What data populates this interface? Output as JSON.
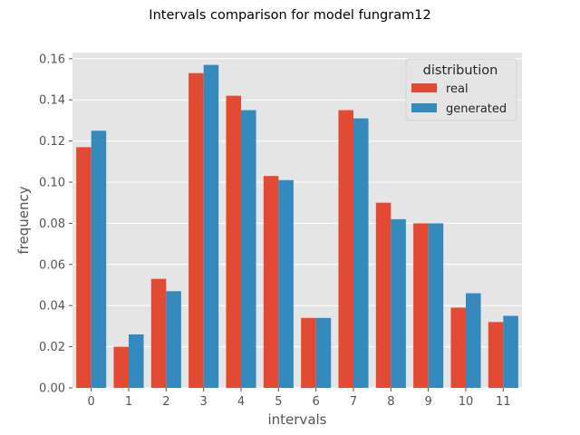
{
  "chart_data": {
    "type": "bar",
    "title": "Intervals comparison for model fungram12",
    "xlabel": "intervals",
    "ylabel": "frequency",
    "categories": [
      "0",
      "1",
      "2",
      "3",
      "4",
      "5",
      "6",
      "7",
      "8",
      "9",
      "10",
      "11"
    ],
    "series": [
      {
        "name": "real",
        "color": "#E24A33",
        "values": [
          0.117,
          0.02,
          0.053,
          0.153,
          0.142,
          0.103,
          0.034,
          0.135,
          0.09,
          0.08,
          0.039,
          0.032
        ]
      },
      {
        "name": "generated",
        "color": "#348ABD",
        "values": [
          0.125,
          0.026,
          0.047,
          0.157,
          0.135,
          0.101,
          0.034,
          0.131,
          0.082,
          0.08,
          0.046,
          0.035
        ]
      }
    ],
    "ylim": [
      0,
      0.163
    ],
    "yticks": [
      "0.00",
      "0.02",
      "0.04",
      "0.06",
      "0.08",
      "0.10",
      "0.12",
      "0.14",
      "0.16"
    ],
    "grid": true,
    "legend_title": "distribution",
    "legend_position": "top-right"
  }
}
